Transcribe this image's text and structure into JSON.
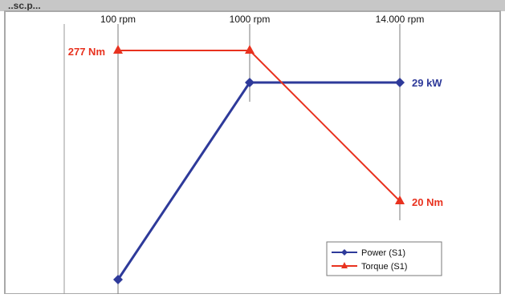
{
  "header": {
    "visible_fragment": "..sc.p..."
  },
  "chart_data": {
    "type": "line",
    "categories": [
      "100 rpm",
      "1000 rpm",
      "14.000 rpm"
    ],
    "series": [
      {
        "name": "Power (S1)",
        "color": "#2e3a9a",
        "marker": "diamond",
        "values_kw": [
          null,
          29,
          29
        ],
        "bottom_point_note": "unlabeled low value at 100 rpm"
      },
      {
        "name": "Torque (S1)",
        "color": "#e8321f",
        "marker": "triangle",
        "values_nm": [
          277,
          277,
          20
        ]
      }
    ],
    "point_labels": {
      "torque_start": "277 Nm",
      "power_end": "29 kW",
      "torque_end": "20 Nm"
    },
    "legend": {
      "placement": "bottom-right",
      "items": [
        "Power (S1)",
        "Torque (S1)"
      ]
    },
    "grid": "vertical lines at categories"
  },
  "colors": {
    "panel_border": "#a9a9a9",
    "header_bg": "#c7c7c7",
    "gridline": "#7a7a7a"
  }
}
